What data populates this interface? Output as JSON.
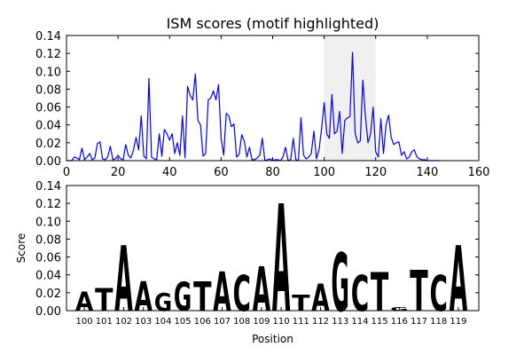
{
  "chart_data": [
    {
      "type": "line",
      "title": "ISM scores (motif highlighted)",
      "xlabel": "",
      "ylabel": "",
      "xlim": [
        0,
        160
      ],
      "ylim": [
        0,
        0.14
      ],
      "xticks": [
        0,
        20,
        40,
        60,
        80,
        100,
        120,
        140,
        160
      ],
      "yticks": [
        "0.00",
        "0.02",
        "0.04",
        "0.06",
        "0.08",
        "0.10",
        "0.12",
        "0.14"
      ],
      "highlight": {
        "x_start": 100,
        "x_end": 120,
        "color": "#f0f0f0"
      },
      "series": [
        {
          "color": "#0000ff",
          "x": [
            0,
            1,
            2,
            3,
            4,
            5,
            6,
            7,
            8,
            9,
            10,
            11,
            12,
            13,
            14,
            15,
            16,
            17,
            18,
            19,
            20,
            21,
            22,
            23,
            24,
            25,
            26,
            27,
            28,
            29,
            30,
            31,
            32,
            33,
            34,
            35,
            36,
            37,
            38,
            39,
            40,
            41,
            42,
            43,
            44,
            45,
            46,
            47,
            48,
            49,
            50,
            51,
            52,
            53,
            54,
            55,
            56,
            57,
            58,
            59,
            60,
            61,
            62,
            63,
            64,
            65,
            66,
            67,
            68,
            69,
            70,
            71,
            72,
            73,
            74,
            75,
            76,
            77,
            78,
            79,
            80,
            81,
            82,
            83,
            84,
            85,
            86,
            87,
            88,
            89,
            90,
            91,
            92,
            93,
            94,
            95,
            96,
            97,
            98,
            99,
            100,
            101,
            102,
            103,
            104,
            105,
            106,
            107,
            108,
            109,
            110,
            111,
            112,
            113,
            114,
            115,
            116,
            117,
            118,
            119,
            120,
            121,
            122,
            123,
            124,
            125,
            126,
            127,
            128,
            129,
            130,
            131,
            132,
            133,
            134,
            135,
            136,
            137,
            138,
            139,
            140,
            141,
            142,
            143,
            144,
            145
          ],
          "y": [
            0,
            0,
            0,
            0.004,
            0.003,
            0.001,
            0.014,
            0.001,
            0.004,
            0.008,
            0.001,
            0.003,
            0.019,
            0.021,
            0.002,
            0.001,
            0.004,
            0.016,
            0.001,
            0.002,
            0.006,
            0.002,
            0.001,
            0.018,
            0.006,
            0.003,
            0.012,
            0.026,
            0.012,
            0.05,
            0.005,
            0.002,
            0.092,
            0.004,
            0.002,
            0.001,
            0.03,
            0.005,
            0.035,
            0.03,
            0.023,
            0.03,
            0.008,
            0.02,
            0.006,
            0.05,
            0.003,
            0.083,
            0.073,
            0.068,
            0.097,
            0.045,
            0.04,
            0.005,
            0.008,
            0.068,
            0.07,
            0.078,
            0.068,
            0.085,
            0.025,
            0.006,
            0.053,
            0.05,
            0.038,
            0.041,
            0.004,
            0.007,
            0.029,
            0.022,
            0.004,
            0.015,
            0.001,
            0.001,
            0.003,
            0.006,
            0.025,
            0,
            0.001,
            0.002,
            0,
            0.001,
            0.001,
            0,
            0.004,
            0.015,
            0,
            0.001,
            0.025,
            0.001,
            0,
            0.048,
            0.006,
            0.002,
            0.004,
            0.008,
            0.033,
            0.002,
            0.012,
            0.036,
            0.065,
            0.03,
            0.025,
            0.074,
            0.03,
            0.033,
            0.055,
            0.008,
            0.045,
            0.048,
            0.049,
            0.121,
            0.031,
            0.02,
            0.022,
            0.09,
            0.05,
            0.02,
            0.03,
            0.06,
            0.01,
            0.004,
            0.047,
            0.008,
            0.04,
            0.051,
            0.026,
            0.018,
            0.02,
            0.021,
            0.006,
            0.01,
            0.002,
            0.004,
            0.01,
            0.012,
            0.004,
            0.002,
            0.001,
            0.001,
            0,
            0,
            0,
            0,
            0,
            0
          ]
        }
      ]
    },
    {
      "type": "sequence-logo",
      "title": "",
      "xlabel": "Position",
      "ylabel": "Score",
      "ylim": [
        0,
        0.14
      ],
      "yticks": [
        "0.00",
        "0.02",
        "0.04",
        "0.06",
        "0.08",
        "0.10",
        "0.12",
        "0.14"
      ],
      "positions": [
        "100",
        "101",
        "102",
        "103",
        "104",
        "105",
        "106",
        "107",
        "108",
        "109",
        "110",
        "111",
        "112",
        "113",
        "114",
        "115",
        "116",
        "117",
        "118",
        "119"
      ],
      "letters": [
        "A",
        "T",
        "A",
        "A",
        "G",
        "G",
        "T",
        "A",
        "C",
        "A",
        "A",
        "T",
        "A",
        "G",
        "C",
        "T",
        "G",
        "T",
        "C",
        "A"
      ],
      "values": [
        0.021,
        0.025,
        0.073,
        0.033,
        0.02,
        0.032,
        0.033,
        0.044,
        0.04,
        0.05,
        0.12,
        0.018,
        0.03,
        0.065,
        0.04,
        0.043,
        0.004,
        0.046,
        0.04,
        0.073
      ],
      "letter_colors": {
        "A": "#008000",
        "C": "#0000ff",
        "G": "#ffa500",
        "T": "#ff0000"
      }
    }
  ]
}
